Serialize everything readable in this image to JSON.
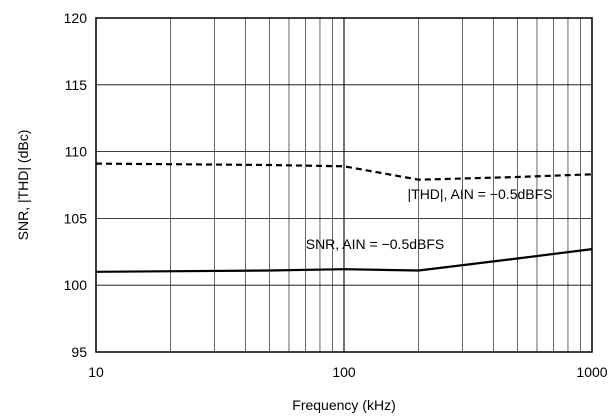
{
  "chart_data": {
    "type": "line",
    "title": "",
    "xlabel": "Frequency (kHz)",
    "ylabel": "SNR, |THD| (dBc)",
    "xscale": "log",
    "xlim": [
      10,
      1000
    ],
    "ylim": [
      95,
      120
    ],
    "grid": true,
    "x_ticks": [
      10,
      100,
      1000
    ],
    "x_tick_labels": [
      "10",
      "100",
      "1000"
    ],
    "y_ticks": [
      95,
      100,
      105,
      110,
      115,
      120
    ],
    "y_tick_labels": [
      "95",
      "100",
      "105",
      "110",
      "115",
      "120"
    ],
    "series": [
      {
        "name": "|THD|, AIN = −0.5dBFS",
        "style": "dashed",
        "color": "#000000",
        "x": [
          10,
          50,
          100,
          200,
          500,
          1000
        ],
        "y": [
          109.1,
          109.0,
          108.9,
          107.9,
          108.1,
          108.3
        ]
      },
      {
        "name": "SNR, AIN = −0.5dBFS",
        "style": "solid",
        "color": "#000000",
        "x": [
          10,
          50,
          100,
          200,
          500,
          1000
        ],
        "y": [
          101.0,
          101.1,
          101.2,
          101.1,
          102.0,
          102.7
        ]
      }
    ],
    "annotations": [
      {
        "text": "|THD|, AIN = −0.5dBFS",
        "series": 0
      },
      {
        "text": "SNR, AIN = −0.5dBFS",
        "series": 1
      }
    ]
  }
}
